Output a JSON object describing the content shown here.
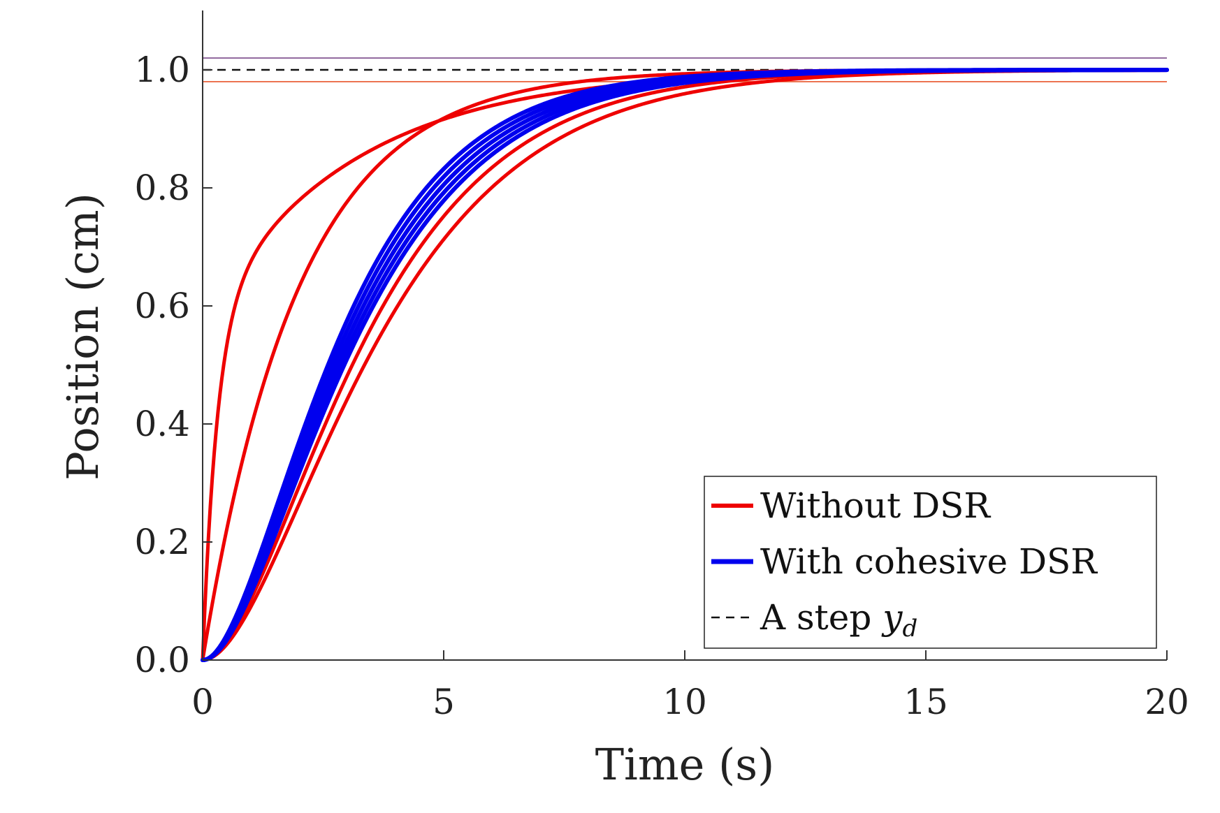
{
  "chart_data": {
    "type": "line",
    "title": "",
    "xlabel": "Time (s)",
    "ylabel": "Position (cm)",
    "xlim": [
      0,
      20
    ],
    "ylim": [
      0,
      1.1
    ],
    "xticks": [
      0,
      5,
      10,
      15,
      20
    ],
    "xtick_labels": [
      "0",
      "5",
      "10",
      "15",
      "20"
    ],
    "yticks": [
      0,
      0.2,
      0.4,
      0.6,
      0.8,
      1.0
    ],
    "ytick_labels": [
      "0.0",
      "0.2",
      "0.4",
      "0.6",
      "0.8",
      "1.0"
    ],
    "grid": false,
    "legend_position": "bottom-right",
    "colors": {
      "without_dsr": "#ee0000",
      "with_dsr": "#0000ee",
      "reference": "#111111",
      "upper_band": "#7a4a8a",
      "lower_band": "#e8552a",
      "axis": "#333333"
    },
    "reference": {
      "name": "A step",
      "symbol": "y",
      "subscript": "d",
      "value": 1.0
    },
    "bands": [
      {
        "name": "upper tolerance",
        "value": 1.02
      },
      {
        "name": "lower tolerance",
        "value": 0.98
      }
    ],
    "groups": [
      {
        "name": "Without DSR",
        "width": 5,
        "series": [
          {
            "model": "first_order",
            "tau": 0.3,
            "share": 0.58,
            "tau2": 3.1
          },
          {
            "model": "first_order",
            "tau": 2.0
          },
          {
            "model": "second_order",
            "tau": 2.0
          },
          {
            "model": "second_order",
            "tau": 1.85
          }
        ]
      },
      {
        "name": "With cohesive DSR",
        "width": 6,
        "series": [
          {
            "model": "second_order",
            "tau": 1.55
          },
          {
            "model": "second_order",
            "tau": 1.6
          },
          {
            "model": "second_order",
            "tau": 1.65
          },
          {
            "model": "second_order",
            "tau": 1.7
          },
          {
            "model": "second_order",
            "tau": 1.75
          }
        ]
      }
    ],
    "legend": [
      {
        "label": "Without DSR",
        "style": "solid-red"
      },
      {
        "label": "With cohesive DSR",
        "style": "solid-blue"
      },
      {
        "label": "A step ",
        "symbol": "y",
        "subscript": "d",
        "style": "dashed-black"
      }
    ]
  }
}
